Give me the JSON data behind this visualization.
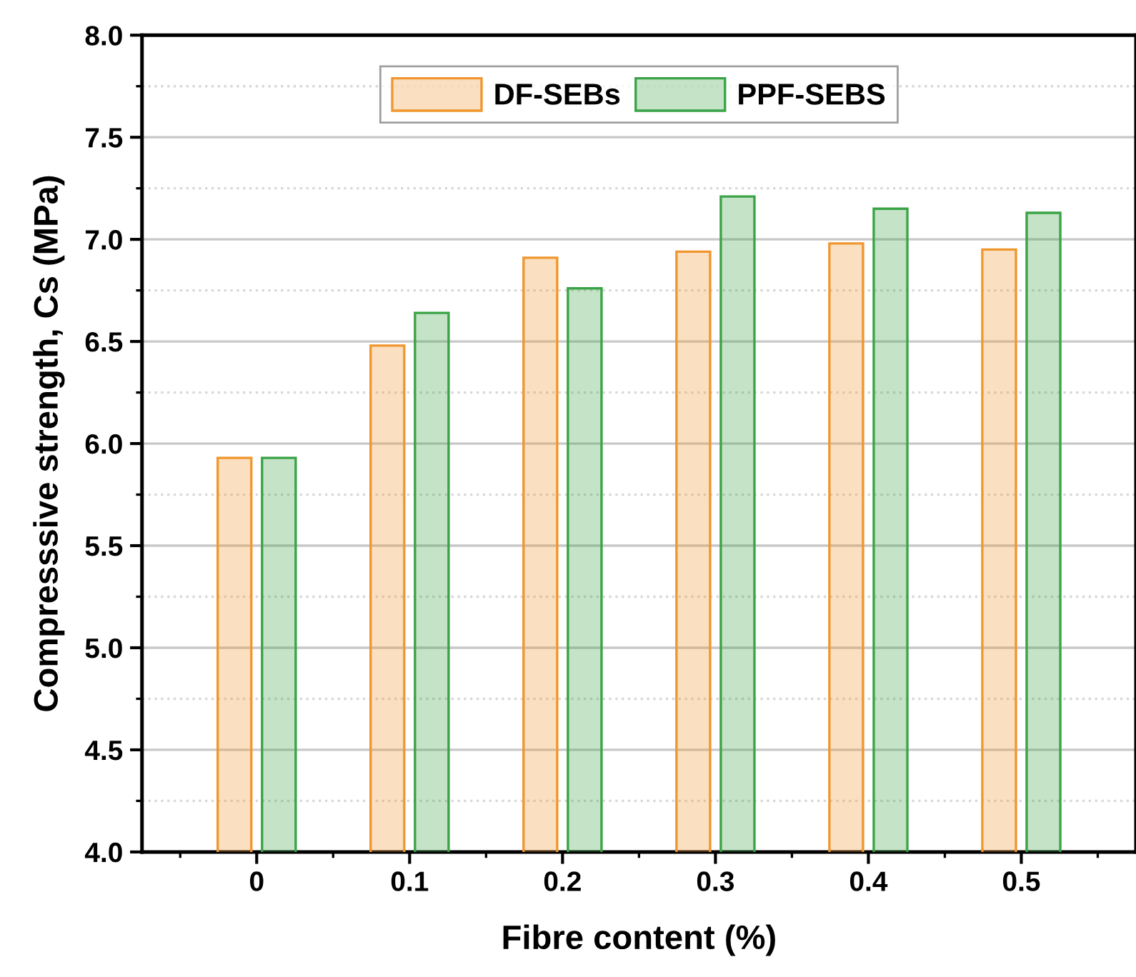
{
  "chart_data": {
    "type": "bar",
    "xlabel": "Fibre content (%)",
    "ylabel": "Compresssive strength, Cs (MPa)",
    "categories": [
      "0",
      "0.1",
      "0.2",
      "0.3",
      "0.4",
      "0.5"
    ],
    "series": [
      {
        "name": "DF-SEBs",
        "color": "#f0962e",
        "values": [
          5.93,
          6.48,
          6.91,
          6.94,
          6.98,
          6.95
        ]
      },
      {
        "name": "PPF-SEBS",
        "color": "#3aa346",
        "values": [
          5.93,
          6.64,
          6.76,
          7.21,
          7.15,
          7.13
        ]
      }
    ],
    "ylim": [
      4.0,
      8.0
    ],
    "yticks": [
      {
        "value": 4.0,
        "label": "4.0"
      },
      {
        "value": 4.5,
        "label": "4.5"
      },
      {
        "value": 5.0,
        "label": "5.0"
      },
      {
        "value": 5.5,
        "label": "5.5"
      },
      {
        "value": 6.0,
        "label": "6.0"
      },
      {
        "value": 6.5,
        "label": "6.5"
      },
      {
        "value": 7.0,
        "label": "7.0"
      },
      {
        "value": 7.5,
        "label": "7.5"
      },
      {
        "value": 8.0,
        "label": "8.0"
      }
    ],
    "grid": "y",
    "legend": "top"
  }
}
